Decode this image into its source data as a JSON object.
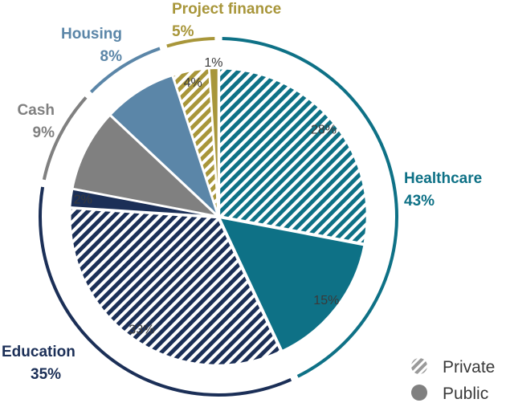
{
  "chart_data": {
    "type": "pie",
    "title": "",
    "groups": [
      {
        "name": "Healthcare",
        "total_label": "43%",
        "color": "#0e7186"
      },
      {
        "name": "Education",
        "total_label": "35%",
        "color": "#1b2f57"
      },
      {
        "name": "Cash",
        "total_label": "9%",
        "color": "#808080"
      },
      {
        "name": "Housing",
        "total_label": "8%",
        "color": "#5b86a8"
      },
      {
        "name": "Project finance",
        "total_label": "5%",
        "color": "#a8963a"
      }
    ],
    "slices": [
      {
        "group": "Healthcare",
        "type": "Private",
        "value": 28,
        "label": "28%"
      },
      {
        "group": "Healthcare",
        "type": "Public",
        "value": 15,
        "label": "15%"
      },
      {
        "group": "Education",
        "type": "Private",
        "value": 33,
        "label": "33%"
      },
      {
        "group": "Education",
        "type": "Public",
        "value": 2,
        "label": "2%"
      },
      {
        "group": "Cash",
        "type": "Public",
        "value": 9,
        "label": ""
      },
      {
        "group": "Housing",
        "type": "Public",
        "value": 8,
        "label": ""
      },
      {
        "group": "Project finance",
        "type": "Private",
        "value": 4,
        "label": "4%"
      },
      {
        "group": "Project finance",
        "type": "Public",
        "value": 1,
        "label": "1%"
      }
    ],
    "legend": {
      "placement": "bottom-right",
      "items": [
        {
          "label": "Private",
          "style": "hatched"
        },
        {
          "label": "Public",
          "style": "solid"
        }
      ]
    }
  }
}
